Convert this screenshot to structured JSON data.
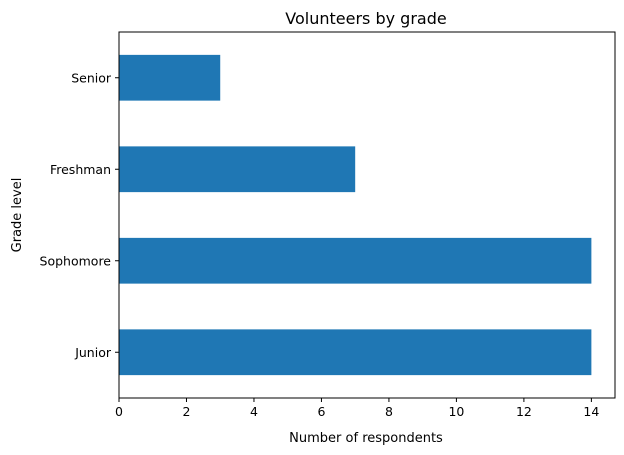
{
  "chart_data": {
    "type": "bar",
    "orientation": "horizontal",
    "title": "Volunteers by grade",
    "xlabel": "Number of respondents",
    "ylabel": "Grade level",
    "categories": [
      "Junior",
      "Sophomore",
      "Freshman",
      "Senior"
    ],
    "values": [
      14,
      14,
      7,
      3
    ],
    "xlim": [
      0,
      14.7
    ],
    "xticks": [
      "0",
      "2",
      "4",
      "6",
      "8",
      "10",
      "12",
      "14"
    ],
    "grid": false,
    "legend": "none",
    "bar_color": "#1f77b4"
  }
}
